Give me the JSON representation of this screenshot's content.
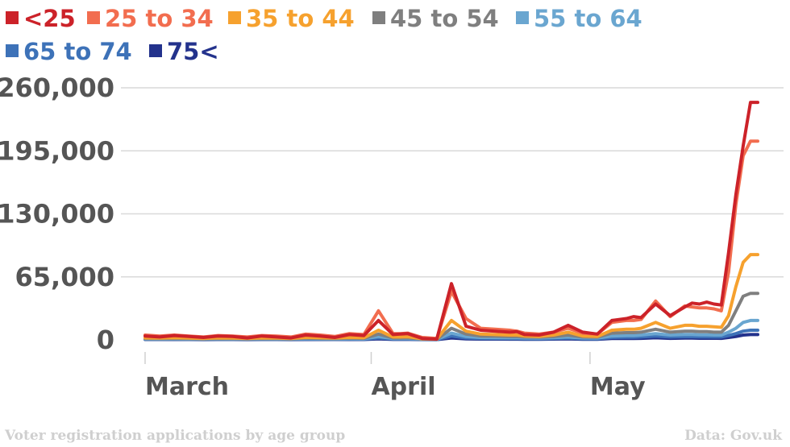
{
  "chart_data": {
    "type": "line",
    "title": "",
    "xlabel": "",
    "ylabel": "",
    "ylim": [
      0,
      260000
    ],
    "yticks": [
      "260,000",
      "195,000",
      "130,000",
      "65,000",
      "0"
    ],
    "ytick_values": [
      260000,
      195000,
      130000,
      65000,
      0
    ],
    "xticks": [
      {
        "label": "March",
        "day": 0
      },
      {
        "label": "April",
        "day": 31
      },
      {
        "label": "May",
        "day": 61
      }
    ],
    "x_unit": "days from 1 March",
    "x": [
      0,
      2,
      4,
      6,
      8,
      10,
      12,
      14,
      16,
      18,
      20,
      22,
      24,
      26,
      28,
      30,
      32,
      34,
      35,
      36,
      38,
      40,
      42,
      44,
      46,
      48,
      50,
      51,
      52,
      54,
      56,
      58,
      60,
      62,
      64,
      66,
      67,
      68,
      70,
      72,
      74,
      75,
      76,
      77,
      78,
      79,
      80,
      81,
      82,
      83,
      84
    ],
    "series": [
      {
        "name": "<25",
        "color": "#cc2229",
        "values": [
          4000,
          3000,
          4500,
          3500,
          2500,
          4000,
          3500,
          2000,
          4000,
          3000,
          2000,
          5000,
          4000,
          2500,
          5500,
          4500,
          20000,
          5500,
          6000,
          6500,
          1500,
          800,
          58000,
          14000,
          10000,
          9000,
          8000,
          8500,
          5500,
          5000,
          8000,
          15000,
          8000,
          6000,
          20000,
          22000,
          24000,
          23000,
          37000,
          25000,
          34000,
          38000,
          37000,
          39000,
          37000,
          36000,
          90000,
          150000,
          200000,
          245000,
          245000
        ]
      },
      {
        "name": "25 to 34",
        "color": "#f26d4f",
        "values": [
          5000,
          4000,
          5000,
          4000,
          3000,
          4500,
          4000,
          3000,
          4500,
          4000,
          3000,
          6000,
          5000,
          3500,
          6500,
          5500,
          30000,
          6500,
          6500,
          7000,
          2500,
          1500,
          50000,
          22000,
          12000,
          11000,
          10000,
          9000,
          7000,
          6000,
          8000,
          12000,
          7000,
          6000,
          18000,
          20000,
          20000,
          21000,
          40000,
          24000,
          35000,
          34000,
          33000,
          33000,
          32000,
          30000,
          70000,
          140000,
          190000,
          205000,
          205000
        ]
      },
      {
        "name": "35 to 44",
        "color": "#f6a12e",
        "values": [
          2000,
          1800,
          2200,
          1800,
          1500,
          2000,
          1800,
          1500,
          2000,
          1800,
          1500,
          2500,
          2200,
          1800,
          2500,
          2200,
          10000,
          3000,
          3000,
          3200,
          1200,
          800,
          20000,
          9000,
          6000,
          5500,
          5000,
          5000,
          4000,
          3500,
          5000,
          8000,
          4000,
          3500,
          10000,
          11000,
          11000,
          12000,
          18000,
          12000,
          15000,
          15000,
          14000,
          14000,
          13500,
          13000,
          25000,
          55000,
          80000,
          88000,
          88000
        ]
      },
      {
        "name": "45 to 54",
        "color": "#7f7f7f",
        "values": [
          1500,
          1300,
          1600,
          1300,
          1200,
          1500,
          1300,
          1200,
          1500,
          1300,
          1200,
          1800,
          1600,
          1300,
          1800,
          1600,
          6000,
          2000,
          2000,
          2200,
          900,
          600,
          12000,
          6000,
          4000,
          3800,
          3500,
          3500,
          3000,
          2800,
          3500,
          5000,
          3000,
          2800,
          7000,
          7500,
          7500,
          8000,
          11000,
          8000,
          9000,
          9000,
          8500,
          8500,
          8000,
          8000,
          15000,
          30000,
          45000,
          48000,
          48000
        ]
      },
      {
        "name": "55 to 64",
        "color": "#6aa6d0",
        "values": [
          1000,
          900,
          1100,
          900,
          800,
          1000,
          900,
          800,
          1000,
          900,
          800,
          1200,
          1100,
          900,
          1200,
          1100,
          3500,
          1300,
          1300,
          1400,
          700,
          500,
          7000,
          3500,
          2500,
          2300,
          2200,
          2200,
          2000,
          1800,
          2300,
          3000,
          2000,
          1800,
          4000,
          4500,
          4500,
          5000,
          6500,
          5000,
          5500,
          5500,
          5200,
          5200,
          5000,
          5000,
          8000,
          12000,
          18000,
          20000,
          20000
        ]
      },
      {
        "name": "65 to 74",
        "color": "#3d72b8",
        "values": [
          700,
          650,
          750,
          650,
          600,
          700,
          650,
          600,
          700,
          650,
          600,
          800,
          750,
          650,
          800,
          750,
          2000,
          900,
          900,
          950,
          500,
          400,
          4000,
          2000,
          1500,
          1400,
          1300,
          1300,
          1200,
          1100,
          1400,
          1800,
          1200,
          1100,
          2500,
          2700,
          2700,
          3000,
          4000,
          3000,
          3300,
          3300,
          3100,
          3100,
          3000,
          3000,
          4500,
          6500,
          9000,
          10000,
          10000
        ]
      },
      {
        "name": "75<",
        "color": "#23328c",
        "values": [
          400,
          380,
          420,
          380,
          350,
          400,
          380,
          350,
          400,
          380,
          350,
          450,
          420,
          380,
          450,
          420,
          1000,
          500,
          500,
          520,
          300,
          250,
          2000,
          1100,
          850,
          800,
          750,
          750,
          700,
          650,
          800,
          1000,
          700,
          650,
          1400,
          1500,
          1500,
          1600,
          2200,
          1600,
          1800,
          1800,
          1700,
          1700,
          1650,
          1600,
          2500,
          3500,
          5000,
          5500,
          5500
        ]
      }
    ]
  },
  "footer": {
    "caption": "Voter registration applications by age group",
    "source": "Data: Gov.uk"
  }
}
